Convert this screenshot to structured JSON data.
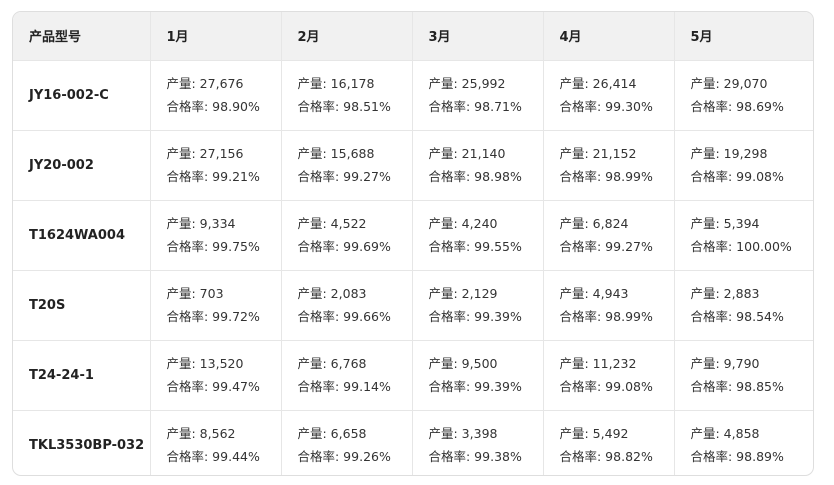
{
  "table": {
    "headers": [
      "产品型号",
      "1月",
      "2月",
      "3月",
      "4月",
      "5月"
    ],
    "rows": [
      {
        "model": "JY16-002-C",
        "cells": [
          {
            "output": "产量: 27,676",
            "rate": "合格率: 98.90%"
          },
          {
            "output": "产量: 16,178",
            "rate": "合格率: 98.51%"
          },
          {
            "output": "产量: 25,992",
            "rate": "合格率: 98.71%"
          },
          {
            "output": "产量: 26,414",
            "rate": "合格率: 99.30%"
          },
          {
            "output": "产量: 29,070",
            "rate": "合格率: 98.69%"
          }
        ]
      },
      {
        "model": "JY20-002",
        "cells": [
          {
            "output": "产量: 27,156",
            "rate": "合格率: 99.21%"
          },
          {
            "output": "产量: 15,688",
            "rate": "合格率: 99.27%"
          },
          {
            "output": "产量: 21,140",
            "rate": "合格率: 98.98%"
          },
          {
            "output": "产量: 21,152",
            "rate": "合格率: 98.99%"
          },
          {
            "output": "产量: 19,298",
            "rate": "合格率: 99.08%"
          }
        ]
      },
      {
        "model": "T1624WA004",
        "cells": [
          {
            "output": "产量: 9,334",
            "rate": "合格率: 99.75%"
          },
          {
            "output": "产量: 4,522",
            "rate": "合格率: 99.69%"
          },
          {
            "output": "产量: 4,240",
            "rate": "合格率: 99.55%"
          },
          {
            "output": "产量: 6,824",
            "rate": "合格率: 99.27%"
          },
          {
            "output": "产量: 5,394",
            "rate": "合格率: 100.00%"
          }
        ]
      },
      {
        "model": "T20S",
        "cells": [
          {
            "output": "产量: 703",
            "rate": "合格率: 99.72%"
          },
          {
            "output": "产量: 2,083",
            "rate": "合格率: 99.66%"
          },
          {
            "output": "产量: 2,129",
            "rate": "合格率: 99.39%"
          },
          {
            "output": "产量: 4,943",
            "rate": "合格率: 98.99%"
          },
          {
            "output": "产量: 2,883",
            "rate": "合格率: 98.54%"
          }
        ]
      },
      {
        "model": "T24-24-1",
        "cells": [
          {
            "output": "产量: 13,520",
            "rate": "合格率: 99.47%"
          },
          {
            "output": "产量: 6,768",
            "rate": "合格率: 99.14%"
          },
          {
            "output": "产量: 9,500",
            "rate": "合格率: 99.39%"
          },
          {
            "output": "产量: 11,232",
            "rate": "合格率: 99.08%"
          },
          {
            "output": "产量: 9,790",
            "rate": "合格率: 98.85%"
          }
        ]
      },
      {
        "model": "TKL3530BP-032",
        "cells": [
          {
            "output": "产量: 8,562",
            "rate": "合格率: 99.44%"
          },
          {
            "output": "产量: 6,658",
            "rate": "合格率: 99.26%"
          },
          {
            "output": "产量: 3,398",
            "rate": "合格率: 99.38%"
          },
          {
            "output": "产量: 5,492",
            "rate": "合格率: 98.82%"
          },
          {
            "output": "产量: 4,858",
            "rate": "合格率: 98.89%"
          }
        ]
      }
    ]
  }
}
